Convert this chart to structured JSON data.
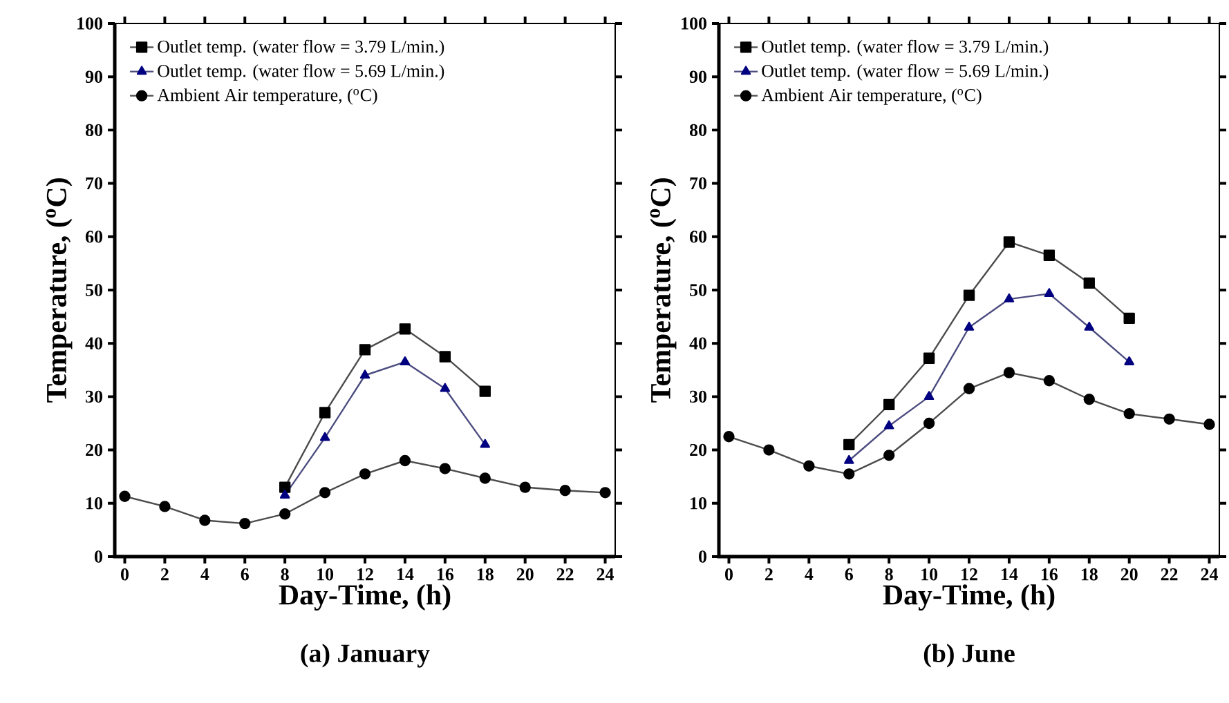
{
  "chart_data": [
    {
      "type": "line",
      "title": "(a) January",
      "xlabel": "Day-Time, (h)",
      "ylabel": "Temperature, ($^{o}$C)",
      "xlim": [
        -0.5,
        24.5
      ],
      "xticks": [
        0,
        2,
        4,
        6,
        8,
        10,
        12,
        14,
        16,
        18,
        20,
        22,
        24
      ],
      "ylim": [
        0,
        100
      ],
      "yticks": [
        0,
        10,
        20,
        30,
        40,
        50,
        60,
        70,
        80,
        90,
        100
      ],
      "legend": "top left",
      "line_style": "solid",
      "series": [
        {
          "name": "Outlet temp. (water flow = 3.79 L/min.)",
          "color": "#000000",
          "marker": "square",
          "x": [
            8,
            10,
            12,
            14,
            16,
            18
          ],
          "values": [
            13,
            27,
            38.8,
            42.7,
            37.5,
            31
          ]
        },
        {
          "name": "Outlet temp. (water flow = 5.69 L/min.)",
          "color": "#000080",
          "marker": "triangle",
          "x": [
            8,
            10,
            12,
            14,
            16,
            18
          ],
          "values": [
            11.5,
            22.3,
            34,
            36.5,
            31.5,
            21
          ]
        },
        {
          "name": "Ambient Air temperature, ($^{o}$C)",
          "color": "#000000",
          "marker": "circle",
          "x": [
            0,
            2,
            4,
            6,
            8,
            10,
            12,
            14,
            16,
            18,
            20,
            22,
            24
          ],
          "values": [
            11.3,
            9.4,
            6.8,
            6.2,
            8,
            12,
            15.5,
            18,
            16.5,
            14.7,
            13,
            12.4,
            12
          ]
        }
      ]
    },
    {
      "type": "line",
      "title": "(b) June",
      "xlabel": "Day-Time, (h)",
      "ylabel": "Temperature, ($^{o}$C)",
      "xlim": [
        -0.5,
        24.5
      ],
      "xticks": [
        0,
        2,
        4,
        6,
        8,
        10,
        12,
        14,
        16,
        18,
        20,
        22,
        24
      ],
      "ylim": [
        0,
        100
      ],
      "yticks": [
        0,
        10,
        20,
        30,
        40,
        50,
        60,
        70,
        80,
        90,
        100
      ],
      "legend": "top left",
      "line_style": "solid",
      "series": [
        {
          "name": "Outlet temp. (water flow = 3.79 L/min.)",
          "color": "#000000",
          "marker": "square",
          "x": [
            6,
            8,
            10,
            12,
            14,
            16,
            18,
            20
          ],
          "values": [
            21,
            28.5,
            37.2,
            49,
            59,
            56.5,
            51.3,
            44.7
          ]
        },
        {
          "name": "Outlet temp. (water flow = 5.69 L/min.)",
          "color": "#000080",
          "marker": "triangle",
          "x": [
            6,
            8,
            10,
            12,
            14,
            16,
            18,
            20
          ],
          "values": [
            18,
            24.5,
            30,
            43,
            48.3,
            49.3,
            43,
            36.5
          ]
        },
        {
          "name": "Ambient Air temperature, ($^{o}$C)",
          "color": "#000000",
          "marker": "circle",
          "x": [
            0,
            2,
            4,
            6,
            8,
            10,
            12,
            14,
            16,
            18,
            20,
            22,
            24
          ],
          "values": [
            22.5,
            20,
            17,
            15.5,
            19,
            25,
            31.5,
            34.5,
            33,
            29.5,
            26.8,
            25.8,
            24.8
          ]
        }
      ]
    }
  ]
}
